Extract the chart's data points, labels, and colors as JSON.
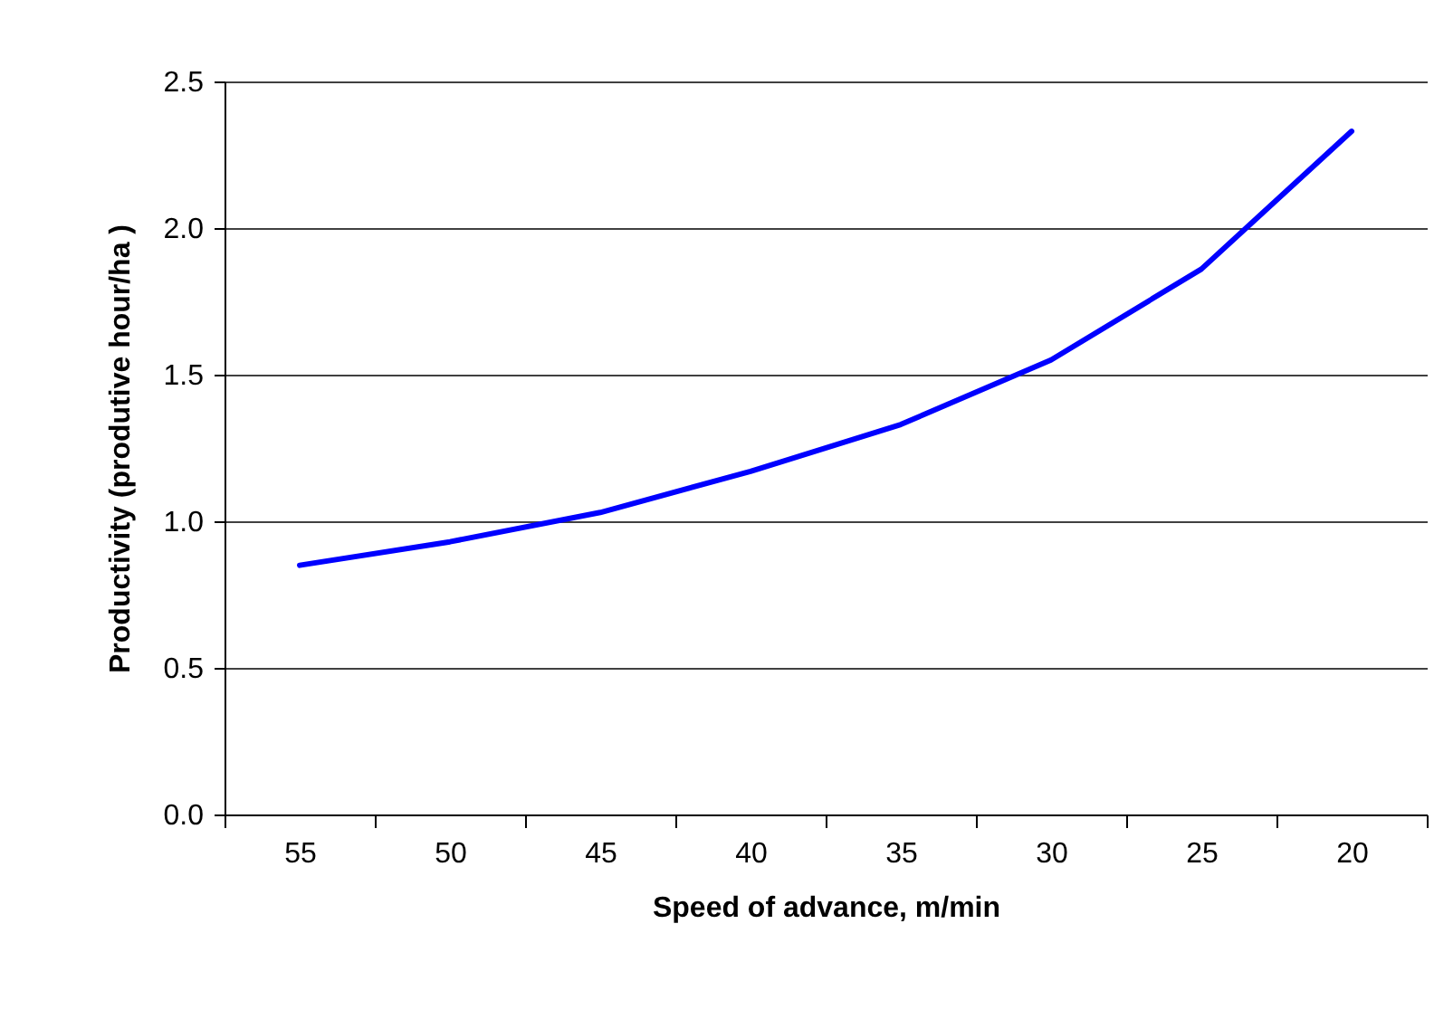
{
  "chart_data": {
    "type": "line",
    "xlabel": "Speed of advance, m/min",
    "ylabel": "Productivity (produtive hour/ha )",
    "categories": [
      "55",
      "50",
      "45",
      "40",
      "35",
      "30",
      "25",
      "20"
    ],
    "series": [
      {
        "color": "#0000ff",
        "values": [
          0.85,
          0.93,
          1.03,
          1.17,
          1.33,
          1.55,
          1.86,
          2.33
        ]
      }
    ],
    "ylim": [
      0,
      2.5
    ],
    "yticks": [
      {
        "value": 0,
        "label": "0.0"
      },
      {
        "value": 0.5,
        "label": "0.5"
      },
      {
        "value": 1,
        "label": "1.0"
      },
      {
        "value": 1.5,
        "label": "1.5"
      },
      {
        "value": 2,
        "label": "2.0"
      },
      {
        "value": 2.5,
        "label": "2.5"
      }
    ],
    "grid": "y",
    "marker": "none",
    "line_style": "solid"
  }
}
